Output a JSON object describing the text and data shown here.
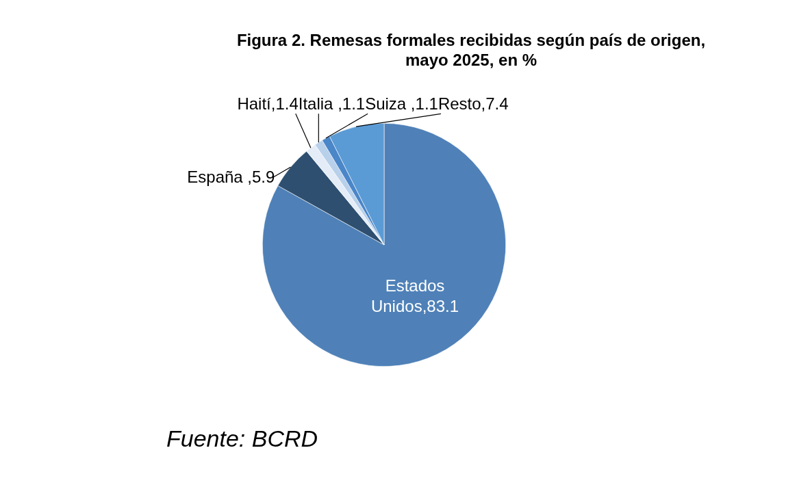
{
  "chart_data": {
    "type": "pie",
    "title": "Figura 2. Remesas formales recibidas según país de origen, mayo 2025, en %",
    "categories": [
      "Estados Unidos",
      "España ",
      "Haití",
      "Italia ",
      "Suiza ",
      "Resto"
    ],
    "values": [
      83.1,
      5.9,
      1.4,
      1.1,
      1.1,
      7.4
    ],
    "value_labels": [
      ",83.1",
      ",5.9",
      ",1.4",
      ",1.1",
      ",1.1",
      ",7.4"
    ],
    "colors": [
      "#4f81b8",
      "#2e4f70",
      "#e4edf7",
      "#b8d0ea",
      "#4a86c8",
      "#5b9bd5"
    ],
    "annotations": [
      "Fuente: BCRD"
    ]
  }
}
